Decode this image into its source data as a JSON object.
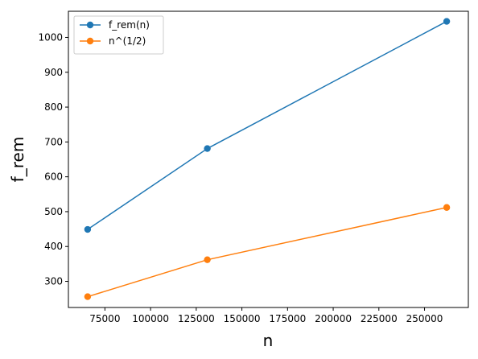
{
  "chart_data": {
    "type": "line",
    "title": "",
    "xlabel": "n",
    "ylabel": "f_rem",
    "xlim": [
      55000,
      274000
    ],
    "ylim": [
      225,
      1075
    ],
    "x_ticks": [
      75000,
      100000,
      125000,
      150000,
      175000,
      200000,
      225000,
      250000
    ],
    "x_tick_labels": [
      "75000",
      "100000",
      "125000",
      "150000",
      "175000",
      "200000",
      "225000",
      "250000"
    ],
    "y_ticks": [
      300,
      400,
      500,
      600,
      700,
      800,
      900,
      1000
    ],
    "y_tick_labels": [
      "300",
      "400",
      "500",
      "600",
      "700",
      "800",
      "900",
      "1000"
    ],
    "grid": false,
    "legend_position": "top-left",
    "x": [
      65536,
      131072,
      262144
    ],
    "series": [
      {
        "name": "f_rem(n)",
        "values": [
          449,
          681,
          1046
        ],
        "color": "#1f77b4",
        "marker": "circle"
      },
      {
        "name": "n^(1/2)",
        "values": [
          256,
          362,
          512
        ],
        "color": "#ff7f0e",
        "marker": "circle"
      }
    ]
  }
}
